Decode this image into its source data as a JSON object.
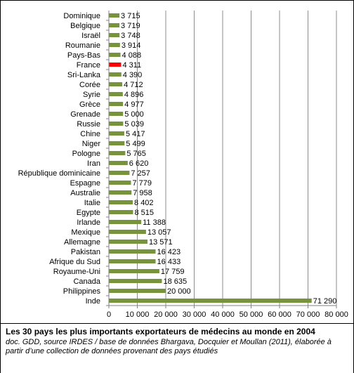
{
  "chart_data": {
    "type": "bar",
    "orientation": "horizontal",
    "categories": [
      "Dominique",
      "Belgique",
      "Israël",
      "Roumanie",
      "Pays-Bas",
      "France",
      "Sri-Lanka",
      "Corée",
      "Syrie",
      "Grèce",
      "Grenade",
      "Russie",
      "Chine",
      "Niger",
      "Pologne",
      "Iran",
      "République dominicaine",
      "Espagne",
      "Australie",
      "Italie",
      "Egypte",
      "Irlande",
      "Mexique",
      "Allemagne",
      "Pakistan",
      "Afrique du Sud",
      "Royaume-Uni",
      "Canada",
      "Philippines",
      "Inde"
    ],
    "values": [
      3715,
      3719,
      3748,
      3914,
      4088,
      4311,
      4390,
      4712,
      4896,
      4977,
      5000,
      5039,
      5417,
      5499,
      5765,
      6620,
      7257,
      7779,
      7958,
      8402,
      8515,
      11388,
      13057,
      13571,
      16423,
      16433,
      17759,
      18635,
      20000,
      71290
    ],
    "value_labels": [
      "3 715",
      "3 719",
      "3 748",
      "3 914",
      "4 088",
      "4 311",
      "4 390",
      "4 712",
      "4 896",
      "4 977",
      "5 000",
      "5 039",
      "5 417",
      "5 499",
      "5 765",
      "6 620",
      "7 257",
      "7 779",
      "7 958",
      "8 402",
      "8 515",
      "11 388",
      "13 057",
      "13 571",
      "16 423",
      "16 433",
      "17 759",
      "18 635",
      "20 000",
      "71 290"
    ],
    "highlight": "France",
    "xlim": [
      0,
      80000
    ],
    "x_ticks": [
      0,
      10000,
      20000,
      30000,
      40000,
      50000,
      60000,
      70000,
      80000
    ],
    "x_tick_labels": [
      "0",
      "10 000",
      "20 000",
      "30 000",
      "40 000",
      "50 000",
      "60 000",
      "70 000",
      "80 000"
    ],
    "grid": true,
    "title": "",
    "xlabel": "",
    "ylabel": "",
    "colors": {
      "bar": "#77933c",
      "highlight": "#ff0000",
      "grid": "#8c8c8c",
      "axis": "#808080"
    }
  },
  "caption": {
    "title": "Les 30 pays les plus importants exportateurs de médecins au monde en 2004",
    "source": "doc. GDD, source IRDES / base de données Bhargava, Docquier et Moullan (2011), élaborée à partir d’une collection de données provenant des pays étudiés"
  }
}
